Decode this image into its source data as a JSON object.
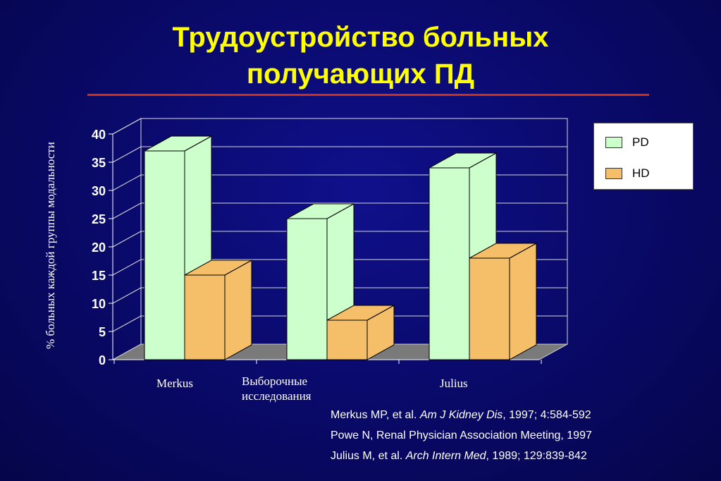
{
  "title_lines": [
    "Трудоустройство больных",
    "получающих ПД"
  ],
  "colors": {
    "pd": "#ccffcc",
    "hd": "#f5bf6a",
    "floor": "#7a7a7a",
    "accent_rule": "#d03010"
  },
  "chart_data": {
    "type": "bar",
    "title": "",
    "ylabel": "% больных каждой группы модальности",
    "categories": [
      "Merkus",
      "Выборочные исследования",
      "Julius"
    ],
    "category_lines": [
      [
        "Merkus"
      ],
      [
        "Выборочные",
        "исследования"
      ],
      [
        "Julius"
      ]
    ],
    "series": [
      {
        "name": "PD",
        "values": [
          37,
          25,
          34
        ]
      },
      {
        "name": "HD",
        "values": [
          15,
          7,
          18
        ]
      }
    ],
    "ylim": [
      0,
      40
    ],
    "yticks": [
      "0",
      "5",
      "10",
      "15",
      "20",
      "25",
      "30",
      "35",
      "40"
    ],
    "grid": true,
    "legend_position": "top-right",
    "three_d": true
  },
  "references": [
    {
      "pre": "Merkus MP, et al. ",
      "em": "Am J Kidney Dis",
      "post": ", 1997; 4:584-592"
    },
    {
      "pre": "Powe N, Renal Physician Association Meeting, 1997",
      "em": "",
      "post": ""
    },
    {
      "pre": "Julius M, et al. ",
      "em": "Arch Intern Med",
      "post": ", 1989; 129:839-842"
    }
  ]
}
